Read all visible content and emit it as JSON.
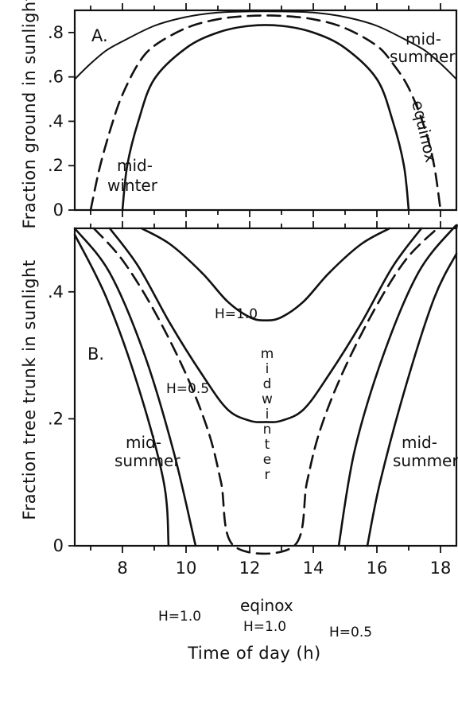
{
  "chart_data": [
    {
      "type": "line",
      "panel": "A.",
      "x_range": [
        6.5,
        18.5
      ],
      "y_range": [
        0,
        0.9
      ],
      "x_ticks": [
        8,
        10,
        12,
        14,
        16,
        18
      ],
      "y_ticks": [
        {
          "value": 0,
          "label": "0"
        },
        {
          "value": 0.2,
          "label": ".2"
        },
        {
          "value": 0.4,
          "label": ".4"
        },
        {
          "value": 0.6,
          "label": ".6"
        },
        {
          "value": 0.8,
          "label": ".8"
        }
      ],
      "ylabel": "Fraction ground in sunlight",
      "series": [
        {
          "name": "mid-summer",
          "style": "thin-solid",
          "points": [
            [
              6.5,
              0.59
            ],
            [
              7,
              0.66
            ],
            [
              7.5,
              0.72
            ],
            [
              8,
              0.76
            ],
            [
              9,
              0.83
            ],
            [
              10,
              0.87
            ],
            [
              11,
              0.89
            ],
            [
              12,
              0.895
            ],
            [
              13,
              0.895
            ],
            [
              14,
              0.89
            ],
            [
              15,
              0.87
            ],
            [
              16,
              0.83
            ],
            [
              17,
              0.76
            ],
            [
              17.5,
              0.72
            ],
            [
              18,
              0.66
            ],
            [
              18.5,
              0.59
            ]
          ]
        },
        {
          "name": "equinox",
          "style": "dashed",
          "points": [
            [
              7.0,
              0.0
            ],
            [
              7.3,
              0.2
            ],
            [
              7.7,
              0.4
            ],
            [
              8.0,
              0.52
            ],
            [
              8.5,
              0.66
            ],
            [
              9,
              0.74
            ],
            [
              10,
              0.82
            ],
            [
              11,
              0.86
            ],
            [
              12,
              0.875
            ],
            [
              13,
              0.875
            ],
            [
              14,
              0.86
            ],
            [
              15,
              0.82
            ],
            [
              16,
              0.74
            ],
            [
              16.5,
              0.66
            ],
            [
              17,
              0.55
            ],
            [
              17.5,
              0.37
            ],
            [
              17.8,
              0.2
            ],
            [
              18.0,
              0.0
            ]
          ]
        },
        {
          "name": "mid-winter",
          "style": "solid",
          "points": [
            [
              8.0,
              0.0
            ],
            [
              8.15,
              0.2
            ],
            [
              8.5,
              0.4
            ],
            [
              9,
              0.59
            ],
            [
              10,
              0.73
            ],
            [
              11,
              0.8
            ],
            [
              12,
              0.83
            ],
            [
              13,
              0.83
            ],
            [
              14,
              0.8
            ],
            [
              15,
              0.73
            ],
            [
              16,
              0.59
            ],
            [
              16.5,
              0.4
            ],
            [
              16.85,
              0.2
            ],
            [
              17.0,
              0.0
            ]
          ]
        }
      ],
      "annotations": {
        "midsummer_line1": "mid-",
        "midsummer_line2": "summer",
        "equinox": "equinox",
        "midwinter_line1": "mid-",
        "midwinter_line2": "winter"
      }
    },
    {
      "type": "line",
      "panel": "B.",
      "x_range": [
        6.5,
        18.5
      ],
      "y_range": [
        0,
        0.5
      ],
      "x_ticks": [
        8,
        10,
        12,
        14,
        16,
        18
      ],
      "y_ticks": [
        {
          "value": 0,
          "label": "0"
        },
        {
          "value": 0.2,
          "label": ".2"
        },
        {
          "value": 0.4,
          "label": ".4"
        }
      ],
      "ylabel": "Fraction tree trunk in sunlight",
      "xlabel": "Time of day (h)",
      "series": [
        {
          "name": "mid-winter, H=1.0",
          "style": "solid",
          "points": [
            [
              8.6,
              0.5
            ],
            [
              9.5,
              0.475
            ],
            [
              10.5,
              0.43
            ],
            [
              11.3,
              0.385
            ],
            [
              12,
              0.36
            ],
            [
              12.5,
              0.355
            ],
            [
              13,
              0.36
            ],
            [
              13.7,
              0.385
            ],
            [
              14.5,
              0.43
            ],
            [
              15.5,
              0.475
            ],
            [
              16.4,
              0.5
            ]
          ]
        },
        {
          "name": "mid-winter, H=0.5",
          "style": "solid",
          "points": [
            [
              7.6,
              0.5
            ],
            [
              8.5,
              0.44
            ],
            [
              9.5,
              0.35
            ],
            [
              10.5,
              0.27
            ],
            [
              11.3,
              0.215
            ],
            [
              12,
              0.197
            ],
            [
              12.5,
              0.195
            ],
            [
              13,
              0.197
            ],
            [
              13.7,
              0.215
            ],
            [
              14.5,
              0.27
            ],
            [
              15.5,
              0.35
            ],
            [
              16.5,
              0.44
            ],
            [
              17.4,
              0.5
            ]
          ]
        },
        {
          "name": "equinox, H=1.0",
          "style": "dashed",
          "points": [
            [
              7.1,
              0.5
            ],
            [
              8,
              0.45
            ],
            [
              9,
              0.37
            ],
            [
              10,
              0.27
            ],
            [
              10.7,
              0.18
            ],
            [
              11.1,
              0.1
            ],
            [
              11.5,
              0.0
            ],
            [
              13.4,
              0.0
            ],
            [
              13.8,
              0.1
            ],
            [
              14.2,
              0.18
            ],
            [
              14.9,
              0.27
            ],
            [
              15.9,
              0.37
            ],
            [
              16.9,
              0.45
            ],
            [
              17.9,
              0.5
            ]
          ]
        },
        {
          "name": "mid-summer, H=0.5",
          "style": "solid",
          "points": [
            [
              6.5,
              0.49
            ],
            [
              7.5,
              0.39
            ],
            [
              8.5,
              0.25
            ],
            [
              9.3,
              0.1
            ],
            [
              9.45,
              0.0
            ]
          ]
        },
        {
          "name": "mid-summer, H=1.0",
          "style": "solid",
          "points": [
            [
              6.5,
              0.5
            ],
            [
              7.6,
              0.43
            ],
            [
              8.7,
              0.3
            ],
            [
              9.6,
              0.15
            ],
            [
              10.3,
              0.0
            ]
          ]
        },
        {
          "name": "mid-summer, H=0.5 (right)",
          "style": "solid",
          "points": [
            [
              14.8,
              0.0
            ],
            [
              15.3,
              0.15
            ],
            [
              16.2,
              0.3
            ],
            [
              17.3,
              0.43
            ],
            [
              18.4,
              0.5
            ],
            [
              18.5,
              0.5
            ]
          ]
        },
        {
          "name": "mid-summer, H=1.0 (right)",
          "style": "solid",
          "points": [
            [
              15.7,
              0.0
            ],
            [
              16.1,
              0.1
            ],
            [
              16.9,
              0.25
            ],
            [
              17.8,
              0.39
            ],
            [
              18.5,
              0.46
            ]
          ]
        }
      ],
      "annotations": {
        "h10_top": "H=1.0",
        "h05_mid": "H=0.5",
        "midwinter_letters": [
          "m",
          "i",
          "d",
          "w",
          "i",
          "n",
          "t",
          "e",
          "r"
        ],
        "midsummer_left_line1": "mid-",
        "midsummer_left_line2": "summer",
        "h10_left": "H=1.0",
        "equinox": "eqinox",
        "h10_bottom": "H=1.0",
        "h05_right": "H=0.5",
        "midsummer_right_line1": "mid-",
        "midsummer_right_line2": "summer"
      }
    }
  ]
}
